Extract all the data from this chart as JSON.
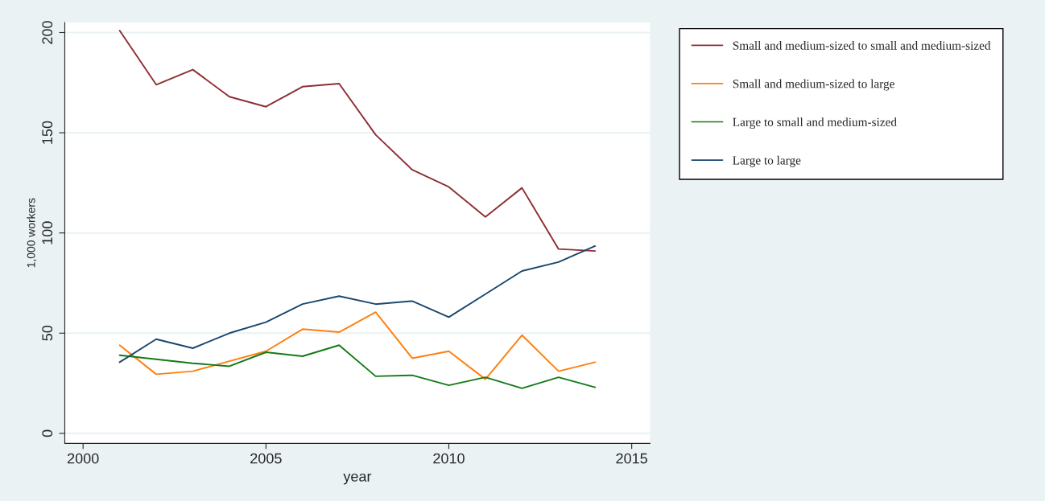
{
  "chart_data": {
    "type": "line",
    "xlabel": "year",
    "ylabel": "1,000 workers",
    "x": [
      2001,
      2002,
      2003,
      2004,
      2005,
      2006,
      2007,
      2008,
      2009,
      2010,
      2011,
      2012,
      2013,
      2014
    ],
    "series": [
      {
        "name": "Small and medium-sized to small and medium-sized",
        "color": "#8f2f35",
        "values": [
          201,
          174,
          181.5,
          168,
          163,
          173,
          174.5,
          149,
          131.5,
          123,
          108,
          122.5,
          92,
          91
        ]
      },
      {
        "name": "Small and medium-sized to large",
        "color": "#ff7f0e",
        "values": [
          44,
          29.5,
          31,
          36,
          41,
          52,
          50.5,
          60.5,
          37.5,
          41,
          27,
          49,
          31,
          35.5
        ]
      },
      {
        "name": "Large to small and medium-sized",
        "color": "#157a15",
        "values": [
          39,
          37,
          35,
          33.5,
          40.5,
          38.5,
          44,
          28.5,
          29,
          24,
          28,
          22.5,
          28,
          23
        ]
      },
      {
        "name": "Large to large",
        "color": "#1a476f",
        "values": [
          35.5,
          47,
          42.5,
          50,
          55.5,
          64.5,
          68.5,
          64.5,
          66,
          58,
          69.5,
          81,
          85.5,
          93.5
        ]
      }
    ],
    "xlim": [
      1999.5,
      2015.5
    ],
    "xticks": [
      2000,
      2005,
      2010,
      2015
    ],
    "ylim": [
      -5,
      205
    ],
    "yticks": [
      0,
      50,
      100,
      150,
      200
    ],
    "grid": "y",
    "legend": "right",
    "marker": "none",
    "line_style": "solid"
  }
}
